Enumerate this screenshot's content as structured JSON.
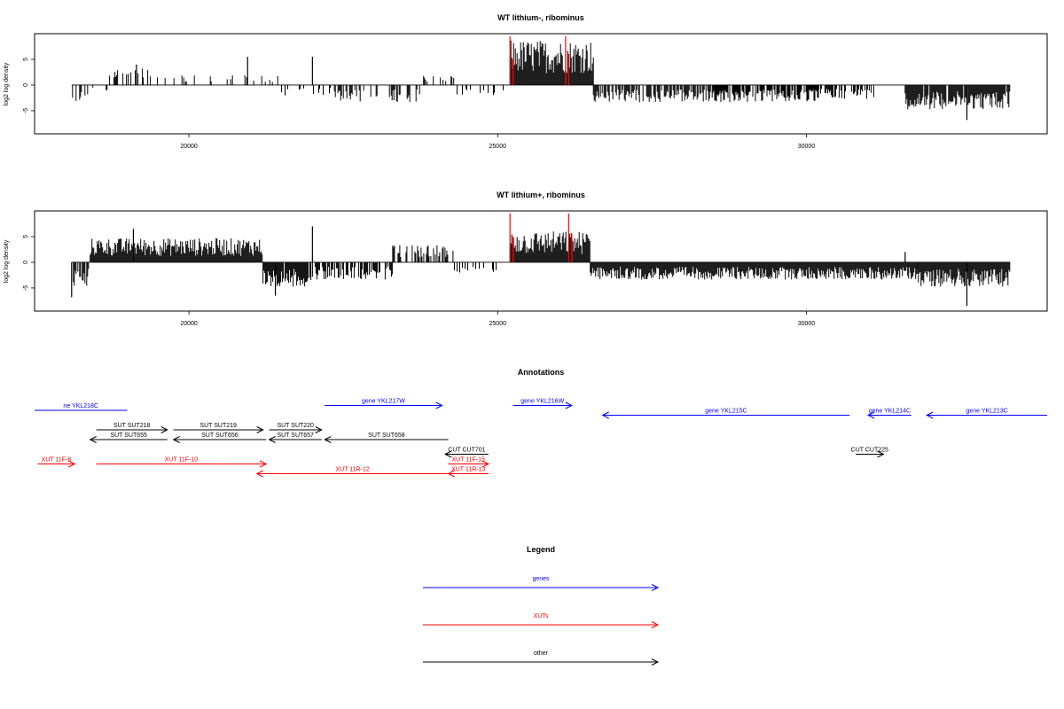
{
  "chart_data": [
    {
      "type": "bar",
      "title": "WT lithium-, ribominus",
      "xlabel": "",
      "ylabel": "log2 log density",
      "xlim": [
        17500,
        33900
      ],
      "ylim": [
        -9.5,
        10
      ],
      "x_ticks": [
        20000,
        25000,
        30000
      ],
      "x_tick_labels": [
        "20000",
        "25000",
        "30000"
      ],
      "y_ticks": [
        -5,
        0,
        5
      ],
      "y_tick_labels": [
        "-5",
        "0",
        "5"
      ],
      "grid": false,
      "bar_color": "#000000",
      "highlight_color": "#ff0000",
      "segments": [
        {
          "x_start": 18100,
          "x_end": 18400,
          "level": -2.5,
          "density": 0.35
        },
        {
          "x_start": 18400,
          "x_end": 18700,
          "level": -1.0,
          "density": 0.2
        },
        {
          "x_start": 18700,
          "x_end": 19600,
          "level": 2.5,
          "density": 0.3
        },
        {
          "x_start": 19600,
          "x_end": 21500,
          "level": 1.5,
          "density": 0.2
        },
        {
          "x_start": 21500,
          "x_end": 22300,
          "level": -1.5,
          "density": 0.3
        },
        {
          "x_start": 22300,
          "x_end": 23800,
          "level": -2.5,
          "density": 0.35
        },
        {
          "x_start": 23800,
          "x_end": 24300,
          "level": 1.5,
          "density": 0.3
        },
        {
          "x_start": 24300,
          "x_end": 25200,
          "level": -1.5,
          "density": 0.25
        },
        {
          "x_start": 25200,
          "x_end": 26550,
          "level": 6.5,
          "density": 1.0
        },
        {
          "x_start": 26550,
          "x_end": 28500,
          "level": -2.5,
          "density": 0.7
        },
        {
          "x_start": 28500,
          "x_end": 30200,
          "level": -2.5,
          "density": 0.8
        },
        {
          "x_start": 30200,
          "x_end": 31100,
          "level": -2.0,
          "density": 0.6
        },
        {
          "x_start": 31100,
          "x_end": 31600,
          "level": 0,
          "density": 0
        },
        {
          "x_start": 31600,
          "x_end": 33300,
          "level": -3.5,
          "density": 0.9
        }
      ],
      "peaks": [
        {
          "x": 20950,
          "y": 5.5
        },
        {
          "x": 22000,
          "y": 5.5
        },
        {
          "x": 19150,
          "y": 4.0
        },
        {
          "x": 32600,
          "y": -6.8
        }
      ],
      "highlights": [
        {
          "x": 25200,
          "y": 9.5
        },
        {
          "x": 25250,
          "y": 5.0
        },
        {
          "x": 26100,
          "y": 9.5
        },
        {
          "x": 26150,
          "y": 6.0
        }
      ]
    },
    {
      "type": "bar",
      "title": "WT lithium+, ribominus",
      "xlabel": "",
      "ylabel": "log2 log density",
      "xlim": [
        17500,
        33900
      ],
      "ylim": [
        -9.5,
        10
      ],
      "x_ticks": [
        20000,
        25000,
        30000
      ],
      "x_tick_labels": [
        "20000",
        "25000",
        "30000"
      ],
      "y_ticks": [
        -5,
        0,
        5
      ],
      "y_tick_labels": [
        "-5",
        "0",
        "5"
      ],
      "grid": false,
      "bar_color": "#000000",
      "highlight_color": "#ff0000",
      "segments": [
        {
          "x_start": 18100,
          "x_end": 18400,
          "level": -3.5,
          "density": 0.8
        },
        {
          "x_start": 18400,
          "x_end": 21200,
          "level": 3.5,
          "density": 1.0
        },
        {
          "x_start": 21200,
          "x_end": 22000,
          "level": -3.5,
          "density": 0.9
        },
        {
          "x_start": 22000,
          "x_end": 23300,
          "level": -2.5,
          "density": 0.7
        },
        {
          "x_start": 23300,
          "x_end": 24300,
          "level": 2.5,
          "density": 0.6
        },
        {
          "x_start": 24300,
          "x_end": 25200,
          "level": -1.5,
          "density": 0.25
        },
        {
          "x_start": 25200,
          "x_end": 26500,
          "level": 4.5,
          "density": 1.0
        },
        {
          "x_start": 26500,
          "x_end": 31800,
          "level": -2.5,
          "density": 1.0
        },
        {
          "x_start": 31800,
          "x_end": 33300,
          "level": -3.5,
          "density": 1.0
        }
      ],
      "peaks": [
        {
          "x": 22000,
          "y": 7.0
        },
        {
          "x": 19100,
          "y": 6.5
        },
        {
          "x": 31600,
          "y": 2.0
        },
        {
          "x": 32600,
          "y": -8.5
        },
        {
          "x": 18100,
          "y": -6.8
        },
        {
          "x": 21400,
          "y": -6.5
        }
      ],
      "highlights": [
        {
          "x": 25200,
          "y": 9.5
        },
        {
          "x": 25250,
          "y": 5.0
        },
        {
          "x": 26150,
          "y": 9.5
        },
        {
          "x": 26200,
          "y": 5.5
        }
      ]
    }
  ],
  "annotations": {
    "title": "Annotations",
    "xlim": [
      17500,
      33900
    ],
    "items": [
      {
        "label": "ne YKL218C",
        "kind": "gene",
        "x_start": 17500,
        "x_end": 19000,
        "dir": "none",
        "row": 0
      },
      {
        "label": "gene YKL217W",
        "kind": "gene",
        "x_start": 22200,
        "x_end": 24100,
        "dir": "right",
        "row": -0.5
      },
      {
        "label": "gene YKL216W",
        "kind": "gene",
        "x_start": 25250,
        "x_end": 26200,
        "dir": "right",
        "row": -0.5
      },
      {
        "label": "gene YKL215C",
        "kind": "gene",
        "x_start": 26700,
        "x_end": 30700,
        "dir": "left",
        "row": 0.5
      },
      {
        "label": "gene YKL214C",
        "kind": "gene",
        "x_start": 31000,
        "x_end": 31700,
        "dir": "left",
        "row": 0.5
      },
      {
        "label": "gene YKL213C",
        "kind": "gene",
        "x_start": 31950,
        "x_end": 33900,
        "dir": "left",
        "row": 0.5
      },
      {
        "label": "SUT SUT218",
        "kind": "other",
        "x_start": 18500,
        "x_end": 19650,
        "dir": "right",
        "row": 2
      },
      {
        "label": "SUT SUT219",
        "kind": "other",
        "x_start": 19750,
        "x_end": 21200,
        "dir": "right",
        "row": 2
      },
      {
        "label": "SUT SUT220",
        "kind": "other",
        "x_start": 21300,
        "x_end": 22150,
        "dir": "right",
        "row": 2
      },
      {
        "label": "SUT SUT655",
        "kind": "other",
        "x_start": 18400,
        "x_end": 19650,
        "dir": "left",
        "row": 3
      },
      {
        "label": "SUT SUT656",
        "kind": "other",
        "x_start": 19750,
        "x_end": 21250,
        "dir": "left",
        "row": 3
      },
      {
        "label": "SUT SUT657",
        "kind": "other",
        "x_start": 21300,
        "x_end": 22150,
        "dir": "left",
        "row": 3
      },
      {
        "label": "SUT SUT658",
        "kind": "other",
        "x_start": 22200,
        "x_end": 24200,
        "dir": "left",
        "row": 3
      },
      {
        "label": "CUT CUT701",
        "kind": "other",
        "x_start": 24150,
        "x_end": 24850,
        "dir": "left",
        "row": 4.5
      },
      {
        "label": "CUT CUT225",
        "kind": "other",
        "x_start": 30800,
        "x_end": 31250,
        "dir": "right",
        "row": 4.5
      },
      {
        "label": "XUT 11F-8",
        "kind": "xut",
        "x_start": 17550,
        "x_end": 18150,
        "dir": "right",
        "row": 5.5
      },
      {
        "label": "XUT 11F-10",
        "kind": "xut",
        "x_start": 18500,
        "x_end": 21250,
        "dir": "right",
        "row": 5.5
      },
      {
        "label": "XUT 11F-15",
        "kind": "xut",
        "x_start": 24200,
        "x_end": 24850,
        "dir": "right",
        "row": 5.5
      },
      {
        "label": "XUT 11R-12",
        "kind": "xut",
        "x_start": 21100,
        "x_end": 24200,
        "dir": "left",
        "row": 6.5
      },
      {
        "label": "XUT 11R-13",
        "kind": "xut",
        "x_start": 24200,
        "x_end": 24850,
        "dir": "left",
        "row": 6.5
      }
    ]
  },
  "legend": {
    "title": "Legend",
    "items": [
      {
        "label": "genes",
        "kind": "gene"
      },
      {
        "label": "XUTs",
        "kind": "xut"
      },
      {
        "label": "other",
        "kind": "other"
      }
    ]
  },
  "colors": {
    "gene": "#0000ff",
    "xut": "#ff0000",
    "other": "#000000",
    "axis": "#000000"
  }
}
